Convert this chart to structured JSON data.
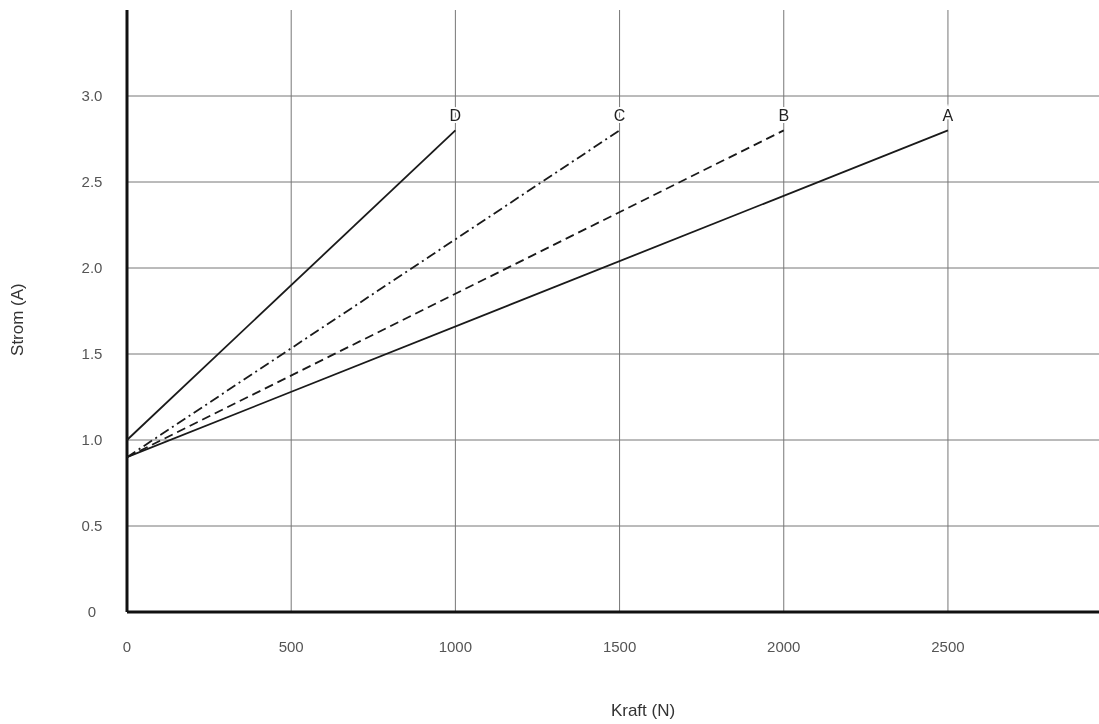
{
  "chart_data": {
    "type": "line",
    "xlabel": "Kraft (N)",
    "ylabel": "Strom (A)",
    "xlim": [
      0,
      2960
    ],
    "ylim": [
      0,
      3.5
    ],
    "xticks": [
      0,
      500,
      1000,
      1500,
      2000,
      2500
    ],
    "yticks": [
      0,
      {
        "value": 0.5,
        "label": "0.5"
      },
      {
        "value": 1,
        "label": "1.0"
      },
      {
        "value": 1.5,
        "label": "1.5"
      },
      {
        "value": 2,
        "label": "2.0"
      },
      {
        "value": 2.5,
        "label": "2.5"
      },
      {
        "value": 3,
        "label": "3.0"
      }
    ],
    "grid": true,
    "marker": "none",
    "series": [
      {
        "name": "A",
        "color": "#1a1a1a",
        "x": [
          0,
          2500
        ],
        "values": [
          0.9,
          2.8
        ],
        "line_style": "solid"
      },
      {
        "name": "B",
        "color": "#1a1a1a",
        "x": [
          0,
          2000
        ],
        "values": [
          0.9,
          2.8
        ],
        "line_style": "dashed"
      },
      {
        "name": "C",
        "color": "#1a1a1a",
        "x": [
          0,
          1500
        ],
        "values": [
          0.9,
          2.8
        ],
        "line_style": "dashdot"
      },
      {
        "name": "D",
        "color": "#1a1a1a",
        "x": [
          0,
          1000
        ],
        "values": [
          1.0,
          2.8
        ],
        "line_style": "solid"
      }
    ]
  }
}
